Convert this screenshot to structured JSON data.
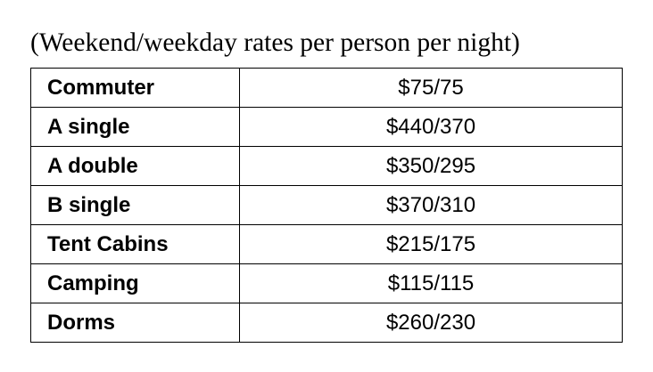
{
  "caption": "(Weekend/weekday rates per person per night)",
  "rows": [
    {
      "name": "Commuter",
      "rate": "$75/75"
    },
    {
      "name": "A single",
      "rate": "$440/370"
    },
    {
      "name": "A double",
      "rate": "$350/295"
    },
    {
      "name": "B single",
      "rate": "$370/310"
    },
    {
      "name": "Tent Cabins",
      "rate": "$215/175"
    },
    {
      "name": "Camping",
      "rate": "$115/115"
    },
    {
      "name": "Dorms",
      "rate": "$260/230"
    }
  ]
}
